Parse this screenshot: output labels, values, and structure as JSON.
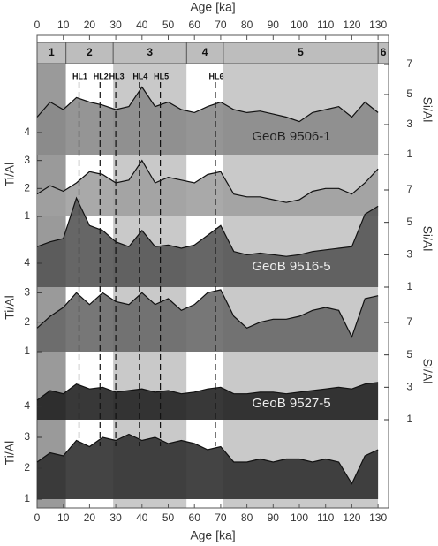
{
  "chart_data": {
    "type": "line",
    "xlabel": "Age [ka]",
    "xlim": [
      0,
      134
    ],
    "xticks": [
      0,
      10,
      20,
      30,
      40,
      50,
      60,
      70,
      80,
      90,
      100,
      110,
      120,
      130
    ],
    "x": [
      0,
      5,
      10,
      15,
      20,
      25,
      30,
      35,
      40,
      45,
      50,
      55,
      60,
      65,
      70,
      75,
      80,
      85,
      90,
      95,
      100,
      105,
      110,
      115,
      120,
      125,
      130
    ],
    "stages": [
      "1",
      "2",
      "3",
      "4",
      "5",
      "6"
    ],
    "stage_boundaries": [
      11,
      29,
      57,
      71,
      130
    ],
    "events": [
      {
        "label": "HL1",
        "age": 16
      },
      {
        "label": "HL2",
        "age": 24
      },
      {
        "label": "HL3",
        "age": 30
      },
      {
        "label": "HL4",
        "age": 39
      },
      {
        "label": "HL5",
        "age": 47
      },
      {
        "label": "HL6",
        "age": 68
      }
    ],
    "panels": [
      {
        "name": "GeoB 9506-1",
        "series": [
          {
            "ylabel": "Si/Al",
            "axis": "right",
            "ylim": [
              1,
              7
            ],
            "yticks": [
              1,
              3,
              5,
              7
            ],
            "color": "#8a8a8a",
            "values": [
              3.5,
              4.5,
              4,
              4.8,
              4.5,
              4.3,
              4,
              4.2,
              5.5,
              4.2,
              4.5,
              4,
              3.8,
              4.2,
              4.5,
              4,
              3.8,
              3.9,
              3.7,
              3.5,
              3.2,
              3.8,
              4,
              4.2,
              3.5,
              4.5,
              3.8
            ]
          },
          {
            "ylabel": "Ti/Al",
            "axis": "left",
            "ylim": [
              1,
              4
            ],
            "yticks": [
              1,
              2,
              3,
              4
            ],
            "color": "#a0a0a0",
            "values": [
              1.8,
              2.1,
              1.9,
              2.2,
              2.6,
              2.5,
              2.2,
              2.3,
              3.0,
              2.2,
              2.4,
              2.3,
              2.2,
              2.5,
              2.6,
              1.8,
              1.7,
              1.7,
              1.6,
              1.5,
              1.6,
              1.9,
              2.0,
              2.0,
              1.8,
              2.2,
              2.7
            ]
          }
        ]
      },
      {
        "name": "GeoB 9516-5",
        "series": [
          {
            "ylabel": "Si/Al",
            "axis": "right",
            "ylim": [
              1,
              7
            ],
            "yticks": [
              1,
              3,
              5,
              7
            ],
            "color": "#555555",
            "values": [
              3.5,
              3.8,
              4,
              6.5,
              4.8,
              4.5,
              3.8,
              3.5,
              4.5,
              3.5,
              3.6,
              3.4,
              3.6,
              4.2,
              4.8,
              3.2,
              3.0,
              3.1,
              3.0,
              2.9,
              3.0,
              3.2,
              3.3,
              3.4,
              3.5,
              5.5,
              6
            ]
          },
          {
            "ylabel": "Ti/Al",
            "axis": "left",
            "ylim": [
              1,
              4
            ],
            "yticks": [
              1,
              2,
              3,
              4
            ],
            "color": "#686868",
            "values": [
              1.8,
              2.2,
              2.5,
              3.0,
              2.6,
              3.0,
              2.7,
              2.6,
              3.0,
              2.6,
              2.8,
              2.4,
              2.6,
              3.0,
              3.1,
              2.2,
              1.8,
              2.0,
              2.1,
              2.1,
              2.2,
              2.4,
              2.5,
              2.4,
              1.5,
              2.8,
              2.9
            ]
          }
        ]
      },
      {
        "name": "GeoB 9527-5",
        "series": [
          {
            "ylabel": "Si/Al",
            "axis": "right",
            "ylim": [
              1,
              7
            ],
            "yticks": [
              1,
              3,
              5,
              7
            ],
            "color": "#222222",
            "values": [
              2.2,
              2.8,
              2.6,
              3.2,
              2.9,
              3.0,
              2.7,
              2.8,
              2.9,
              2.7,
              2.8,
              2.6,
              2.7,
              2.9,
              3.0,
              2.6,
              2.6,
              2.7,
              2.7,
              2.6,
              2.7,
              2.8,
              2.9,
              3.0,
              2.9,
              3.2,
              3.3
            ]
          },
          {
            "ylabel": "Ti/Al",
            "axis": "left",
            "ylim": [
              1,
              4
            ],
            "yticks": [
              1,
              2,
              3,
              4
            ],
            "color": "#303030",
            "values": [
              2.2,
              2.5,
              2.4,
              2.9,
              2.7,
              3.0,
              2.9,
              3.1,
              2.9,
              3.0,
              2.8,
              2.9,
              2.8,
              2.6,
              2.7,
              2.2,
              2.2,
              2.3,
              2.2,
              2.3,
              2.3,
              2.2,
              2.3,
              2.2,
              1.5,
              2.4,
              2.6
            ]
          }
        ]
      }
    ]
  }
}
